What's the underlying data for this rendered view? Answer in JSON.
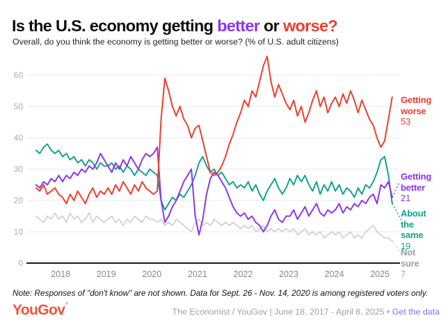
{
  "header": {
    "title_parts": {
      "p0": "Is the U.S. economy getting ",
      "p1": "better",
      "p2": " or ",
      "p3": "worse?"
    },
    "subtitle": "Overall, do you think the economy is getting better or worse? (% of U.S. adult citizens)"
  },
  "colors": {
    "worse_red": "#f23c2b",
    "better_purple": "#8c35f0",
    "same_teal": "#12a38d",
    "notsure_gray": "#c9cdd8",
    "axis_gray": "#a8adb5",
    "link_purple": "#7b70f2",
    "logo_red": "#f4503a"
  },
  "chart_data": {
    "type": "line",
    "title": "Is the U.S. economy getting better or worse?",
    "xlabel": "",
    "ylabel": "% of U.S. adult citizens",
    "grid": true,
    "legend_position": "right",
    "x_start": 2017.46,
    "x_end": 2025.27,
    "xlim": [
      2017.28,
      2025.41
    ],
    "ylim": [
      0,
      68
    ],
    "yticks": [
      0,
      10,
      20,
      30,
      40,
      50,
      60
    ],
    "xticks": [
      2018,
      2019,
      2020,
      2021,
      2022,
      2023,
      2024,
      2025
    ],
    "x_unit": "year (June 18, 2017 - April 8, 2025, ~monthly samples)",
    "series": [
      {
        "name": "Getting worse",
        "label_lines": [
          "Getting",
          "worse"
        ],
        "end_value": "53",
        "color": "#f23c2b",
        "width": 2,
        "values": [
          24,
          23,
          25,
          22,
          23,
          24,
          22,
          21,
          19,
          22,
          20,
          23,
          21,
          19,
          22,
          24,
          21,
          23,
          22,
          24,
          22,
          25,
          23,
          26,
          24,
          22,
          25,
          23,
          26,
          24,
          23,
          22,
          23,
          46,
          59,
          55,
          50,
          47,
          50,
          46,
          44,
          40,
          43,
          44,
          39,
          34,
          29,
          28,
          29,
          31,
          34,
          38,
          41,
          45,
          48,
          52,
          50,
          55,
          53,
          58,
          63,
          66,
          58,
          53,
          57,
          54,
          51,
          49,
          52,
          47,
          50,
          45,
          48,
          52,
          55,
          50,
          53,
          48,
          51,
          53,
          50,
          54,
          51,
          55,
          52,
          48,
          52,
          49,
          46,
          44,
          40,
          37,
          39,
          46,
          53
        ]
      },
      {
        "name": "Getting better",
        "label_lines": [
          "Getting",
          "better"
        ],
        "end_value": "21",
        "color": "#8c35f0",
        "width": 2,
        "values": [
          25,
          24,
          26,
          25,
          27,
          26,
          28,
          26,
          28,
          27,
          29,
          28,
          30,
          29,
          31,
          30,
          32,
          35,
          33,
          31,
          29,
          32,
          30,
          33,
          31,
          34,
          32,
          30,
          33,
          35,
          34,
          35,
          37,
          20,
          13,
          15,
          18,
          20,
          23,
          26,
          28,
          30,
          15,
          9,
          14,
          22,
          27,
          29,
          28,
          26,
          24,
          21,
          18,
          16,
          15,
          16,
          14,
          15,
          13,
          12,
          10,
          12,
          15,
          17,
          14,
          13,
          15,
          15,
          17,
          14,
          16,
          18,
          15,
          17,
          19,
          16,
          15,
          17,
          16,
          17,
          19,
          16,
          18,
          17,
          19,
          18,
          20,
          19,
          21,
          22,
          19,
          25,
          24,
          26,
          21
        ]
      },
      {
        "name": "About the same",
        "label_lines": [
          "About",
          "the",
          "same"
        ],
        "end_value": "19",
        "color": "#12a38d",
        "width": 2,
        "values": [
          36,
          35,
          37,
          38,
          36,
          35,
          36,
          34,
          35,
          33,
          34,
          32,
          33,
          31,
          33,
          32,
          30,
          32,
          31,
          31,
          32,
          30,
          31,
          29,
          31,
          30,
          28,
          30,
          29,
          28,
          30,
          29,
          28,
          20,
          17,
          19,
          21,
          20,
          22,
          21,
          23,
          25,
          28,
          32,
          34,
          31,
          29,
          30,
          28,
          29,
          27,
          25,
          26,
          24,
          25,
          24,
          26,
          23,
          25,
          22,
          20,
          23,
          25,
          27,
          24,
          22,
          24,
          27,
          25,
          28,
          26,
          28,
          25,
          23,
          26,
          22,
          25,
          23,
          26,
          23,
          25,
          22,
          24,
          23,
          21,
          24,
          22,
          25,
          24,
          26,
          29,
          33,
          34,
          28,
          19
        ]
      },
      {
        "name": "Not sure",
        "label_lines": [
          "Not",
          "sure"
        ],
        "end_value": "7",
        "color": "#c9cdd8",
        "width": 1.6,
        "values": [
          15,
          14,
          13,
          15,
          14,
          16,
          14,
          15,
          13,
          16,
          14,
          15,
          13,
          14,
          16,
          13,
          15,
          14,
          13,
          14,
          15,
          13,
          14,
          12,
          14,
          13,
          15,
          14,
          13,
          15,
          14,
          14,
          13,
          14,
          12,
          13,
          12,
          14,
          13,
          12,
          11,
          10,
          13,
          14,
          12,
          13,
          12,
          14,
          13,
          12,
          13,
          12,
          13,
          12,
          11,
          12,
          11,
          12,
          10,
          11,
          12,
          10,
          11,
          10,
          11,
          10,
          11,
          10,
          11,
          9,
          10,
          11,
          9,
          10,
          9,
          10,
          8,
          9,
          10,
          9,
          10,
          8,
          9,
          10,
          8,
          9,
          8,
          10,
          11,
          12,
          10,
          9,
          8,
          8,
          7
        ]
      }
    ]
  },
  "note": "Note: Responses of \"don't know\" are not shown. Data for Sept. 26 - Nov. 14, 2020 is among registered voters only.",
  "footer": {
    "logo": "YouGov",
    "logo_mark": "’",
    "credit": "The Economist / YouGov | June 18, 2017 - April 8, 2025",
    "bullet": "•",
    "link": "Get the data"
  }
}
